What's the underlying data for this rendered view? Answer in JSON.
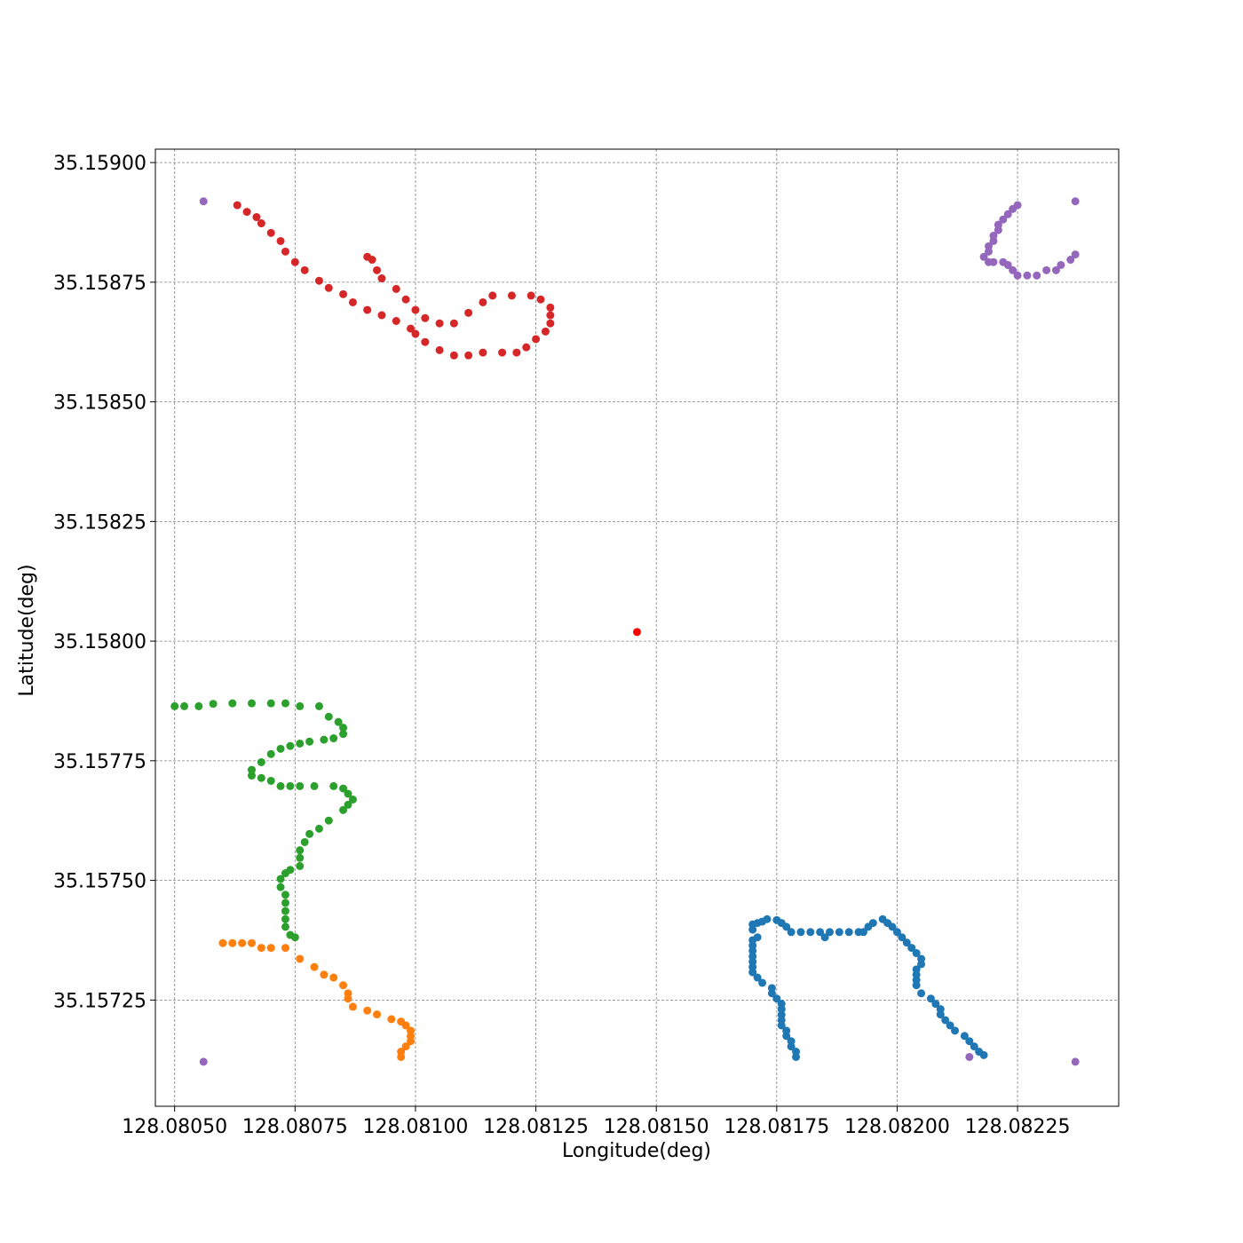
{
  "chart_data": {
    "type": "scatter",
    "title": "",
    "xlabel": "Longitude(deg)",
    "ylabel": "Latitude(deg)",
    "xlim": [
      128.08046,
      128.08246
    ],
    "ylim": [
      35.157028,
      35.159028
    ],
    "xticks": [
      128.0805,
      128.08075,
      128.081,
      128.08125,
      128.0815,
      128.08175,
      128.082,
      128.08225
    ],
    "xtick_labels": [
      "128.08050",
      "128.08075",
      "128.08100",
      "128.08125",
      "128.08150",
      "128.08175",
      "128.08200",
      "128.08225"
    ],
    "yticks": [
      35.15725,
      35.1575,
      35.15775,
      35.158,
      35.15825,
      35.1585,
      35.15875,
      35.159
    ],
    "ytick_labels": [
      "35.15725",
      "35.15750",
      "35.15775",
      "35.15800",
      "35.15825",
      "35.15850",
      "35.15875",
      "35.15900"
    ],
    "grid": true,
    "legend": "none",
    "series": [
      {
        "color": "#1f77b4",
        "points": [
          [
            128.08179,
            35.157131
          ],
          [
            128.08179,
            35.157142
          ],
          [
            128.08178,
            35.157153
          ],
          [
            128.08178,
            35.157164
          ],
          [
            128.08177,
            35.157175
          ],
          [
            128.08177,
            35.157186
          ],
          [
            128.08176,
            35.157197
          ],
          [
            128.08176,
            35.157208
          ],
          [
            128.08176,
            35.157219
          ],
          [
            128.08176,
            35.157231
          ],
          [
            128.08176,
            35.157242
          ],
          [
            128.08175,
            35.157253
          ],
          [
            128.08174,
            35.157264
          ],
          [
            128.08174,
            35.157275
          ],
          [
            128.08172,
            35.157286
          ],
          [
            128.08171,
            35.157297
          ],
          [
            128.0817,
            35.157308
          ],
          [
            128.0817,
            35.157319
          ],
          [
            128.0817,
            35.15733
          ],
          [
            128.0817,
            35.157341
          ],
          [
            128.0817,
            35.157353
          ],
          [
            128.0817,
            35.157364
          ],
          [
            128.0817,
            35.157375
          ],
          [
            128.08171,
            35.157381
          ],
          [
            128.0817,
            35.157397
          ],
          [
            128.0817,
            35.157408
          ],
          [
            128.08171,
            35.157411
          ],
          [
            128.08172,
            35.157414
          ],
          [
            128.08173,
            35.157419
          ],
          [
            128.08175,
            35.157417
          ],
          [
            128.08176,
            35.157411
          ],
          [
            128.08177,
            35.157403
          ],
          [
            128.08178,
            35.157392
          ],
          [
            128.0818,
            35.157392
          ],
          [
            128.08182,
            35.157392
          ],
          [
            128.08184,
            35.157392
          ],
          [
            128.08185,
            35.157381
          ],
          [
            128.08186,
            35.157392
          ],
          [
            128.08188,
            35.157392
          ],
          [
            128.0819,
            35.157392
          ],
          [
            128.08192,
            35.157392
          ],
          [
            128.08193,
            35.157392
          ],
          [
            128.08194,
            35.157403
          ],
          [
            128.08195,
            35.157411
          ],
          [
            128.08197,
            35.157419
          ],
          [
            128.08198,
            35.157411
          ],
          [
            128.08199,
            35.157403
          ],
          [
            128.082,
            35.157392
          ],
          [
            128.08201,
            35.157381
          ],
          [
            128.08202,
            35.15737
          ],
          [
            128.08203,
            35.157359
          ],
          [
            128.08204,
            35.157348
          ],
          [
            128.08205,
            35.157336
          ],
          [
            128.08205,
            35.157325
          ],
          [
            128.08204,
            35.157314
          ],
          [
            128.08204,
            35.157303
          ],
          [
            128.08204,
            35.157292
          ],
          [
            128.08204,
            35.157281
          ],
          [
            128.08205,
            35.157264
          ],
          [
            128.08207,
            35.157253
          ],
          [
            128.08208,
            35.157242
          ],
          [
            128.08209,
            35.157231
          ],
          [
            128.08209,
            35.15722
          ],
          [
            128.0821,
            35.157208
          ],
          [
            128.08211,
            35.157197
          ],
          [
            128.08212,
            35.157186
          ],
          [
            128.08214,
            35.157175
          ],
          [
            128.08215,
            35.157164
          ],
          [
            128.08216,
            35.157153
          ],
          [
            128.08217,
            35.157142
          ],
          [
            128.08218,
            35.157135
          ]
        ]
      },
      {
        "color": "#ff7f0e",
        "points": [
          [
            128.08097,
            35.157131
          ],
          [
            128.08097,
            35.157142
          ],
          [
            128.08098,
            35.157153
          ],
          [
            128.08099,
            35.157164
          ],
          [
            128.08099,
            35.157175
          ],
          [
            128.08099,
            35.157186
          ],
          [
            128.08098,
            35.157197
          ],
          [
            128.08097,
            35.157205
          ],
          [
            128.08095,
            35.15721
          ],
          [
            128.08092,
            35.15722
          ],
          [
            128.0809,
            35.157228
          ],
          [
            128.08087,
            35.157236
          ],
          [
            128.08086,
            35.157253
          ],
          [
            128.08086,
            35.157264
          ],
          [
            128.08085,
            35.157281
          ],
          [
            128.08083,
            35.157297
          ],
          [
            128.08081,
            35.157303
          ],
          [
            128.08079,
            35.157319
          ],
          [
            128.08076,
            35.157336
          ],
          [
            128.08073,
            35.157359
          ],
          [
            128.0807,
            35.157359
          ],
          [
            128.08068,
            35.157359
          ],
          [
            128.08066,
            35.157369
          ],
          [
            128.08064,
            35.157369
          ],
          [
            128.08062,
            35.157369
          ],
          [
            128.0806,
            35.157369
          ]
        ]
      },
      {
        "color": "#2ca02c",
        "points": [
          [
            128.08075,
            35.157381
          ],
          [
            128.08074,
            35.157386
          ],
          [
            128.08073,
            35.157403
          ],
          [
            128.08073,
            35.157419
          ],
          [
            128.08073,
            35.157436
          ],
          [
            128.08073,
            35.157453
          ],
          [
            128.08073,
            35.15747
          ],
          [
            128.08072,
            35.157486
          ],
          [
            128.08072,
            35.157503
          ],
          [
            128.08073,
            35.157515
          ],
          [
            128.08074,
            35.157522
          ],
          [
            128.08076,
            35.15753
          ],
          [
            128.08076,
            35.157547
          ],
          [
            128.08076,
            35.157563
          ],
          [
            128.08077,
            35.15758
          ],
          [
            128.08078,
            35.157597
          ],
          [
            128.0808,
            35.157608
          ],
          [
            128.08082,
            35.157625
          ],
          [
            128.08085,
            35.157647
          ],
          [
            128.08086,
            35.157658
          ],
          [
            128.08087,
            35.157669
          ],
          [
            128.08086,
            35.157681
          ],
          [
            128.08085,
            35.157692
          ],
          [
            128.08083,
            35.157697
          ],
          [
            128.08079,
            35.157697
          ],
          [
            128.08076,
            35.157697
          ],
          [
            128.08074,
            35.157697
          ],
          [
            128.08072,
            35.157697
          ],
          [
            128.0807,
            35.157708
          ],
          [
            128.08068,
            35.157714
          ],
          [
            128.08066,
            35.157719
          ],
          [
            128.08066,
            35.157731
          ],
          [
            128.08068,
            35.157747
          ],
          [
            128.0807,
            35.157764
          ],
          [
            128.08072,
            35.157775
          ],
          [
            128.08074,
            35.157781
          ],
          [
            128.08076,
            35.157786
          ],
          [
            128.08078,
            35.15779
          ],
          [
            128.08081,
            35.157794
          ],
          [
            128.08083,
            35.157797
          ],
          [
            128.08085,
            35.157806
          ],
          [
            128.08085,
            35.157819
          ],
          [
            128.08084,
            35.157831
          ],
          [
            128.08082,
            35.157842
          ],
          [
            128.0808,
            35.157864
          ],
          [
            128.08076,
            35.157864
          ],
          [
            128.08073,
            35.15787
          ],
          [
            128.0807,
            35.15787
          ],
          [
            128.08066,
            35.15787
          ],
          [
            128.08062,
            35.15787
          ],
          [
            128.08058,
            35.157869
          ],
          [
            128.08055,
            35.157864
          ],
          [
            128.08052,
            35.157864
          ],
          [
            128.0805,
            35.157864
          ]
        ]
      },
      {
        "color": "#d62728",
        "points": [
          [
            128.08063,
            35.158911
          ],
          [
            128.08065,
            35.158897
          ],
          [
            128.08067,
            35.158886
          ],
          [
            128.08068,
            35.158873
          ],
          [
            128.0807,
            35.158853
          ],
          [
            128.08072,
            35.158836
          ],
          [
            128.08073,
            35.158814
          ],
          [
            128.08075,
            35.158792
          ],
          [
            128.08077,
            35.158775
          ],
          [
            128.0808,
            35.158753
          ],
          [
            128.08082,
            35.158738
          ],
          [
            128.08085,
            35.158725
          ],
          [
            128.08087,
            35.158708
          ],
          [
            128.0809,
            35.158692
          ],
          [
            128.08093,
            35.158681
          ],
          [
            128.08096,
            35.158669
          ],
          [
            128.08099,
            35.158653
          ],
          [
            128.081,
            35.158642
          ],
          [
            128.08102,
            35.158625
          ],
          [
            128.08105,
            35.158608
          ],
          [
            128.08108,
            35.158597
          ],
          [
            128.08111,
            35.158597
          ],
          [
            128.08114,
            35.158603
          ],
          [
            128.08118,
            35.158603
          ],
          [
            128.08121,
            35.158603
          ],
          [
            128.08123,
            35.158614
          ],
          [
            128.08125,
            35.158631
          ],
          [
            128.08127,
            35.158647
          ],
          [
            128.08128,
            35.158664
          ],
          [
            128.08128,
            35.158681
          ],
          [
            128.08128,
            35.158697
          ],
          [
            128.08126,
            35.158714
          ],
          [
            128.08124,
            35.158722
          ],
          [
            128.0812,
            35.158722
          ],
          [
            128.08116,
            35.158722
          ],
          [
            128.08114,
            35.158708
          ],
          [
            128.08111,
            35.158686
          ],
          [
            128.08108,
            35.158664
          ],
          [
            128.08105,
            35.158664
          ],
          [
            128.08102,
            35.158675
          ],
          [
            128.081,
            35.158692
          ],
          [
            128.08098,
            35.158714
          ],
          [
            128.08096,
            35.158736
          ],
          [
            128.08093,
            35.158758
          ],
          [
            128.08092,
            35.158775
          ],
          [
            128.08091,
            35.158797
          ],
          [
            128.0809,
            35.158803
          ]
        ]
      },
      {
        "color": "#9467bd",
        "points": [
          [
            128.08056,
            35.158919
          ],
          [
            128.08237,
            35.158919
          ],
          [
            128.08056,
            35.157121
          ],
          [
            128.08237,
            35.157121
          ],
          [
            128.08215,
            35.157131
          ],
          [
            128.08225,
            35.158911
          ],
          [
            128.08224,
            35.158903
          ],
          [
            128.08223,
            35.158892
          ],
          [
            128.08222,
            35.158881
          ],
          [
            128.08221,
            35.15887
          ],
          [
            128.08221,
            35.158859
          ],
          [
            128.0822,
            35.158847
          ],
          [
            128.0822,
            35.158836
          ],
          [
            128.08219,
            35.158825
          ],
          [
            128.08219,
            35.158814
          ],
          [
            128.08218,
            35.158803
          ],
          [
            128.08219,
            35.158792
          ],
          [
            128.0822,
            35.158792
          ],
          [
            128.08222,
            35.158792
          ],
          [
            128.08223,
            35.158786
          ],
          [
            128.08224,
            35.158775
          ],
          [
            128.08225,
            35.158764
          ],
          [
            128.08227,
            35.158764
          ],
          [
            128.08229,
            35.158764
          ],
          [
            128.08231,
            35.158775
          ],
          [
            128.08233,
            35.158775
          ],
          [
            128.08234,
            35.158786
          ],
          [
            128.08236,
            35.158797
          ],
          [
            128.08237,
            35.158808
          ]
        ]
      },
      {
        "color": "#ff0000",
        "points": [
          [
            128.08146,
            35.158019
          ]
        ]
      }
    ]
  }
}
